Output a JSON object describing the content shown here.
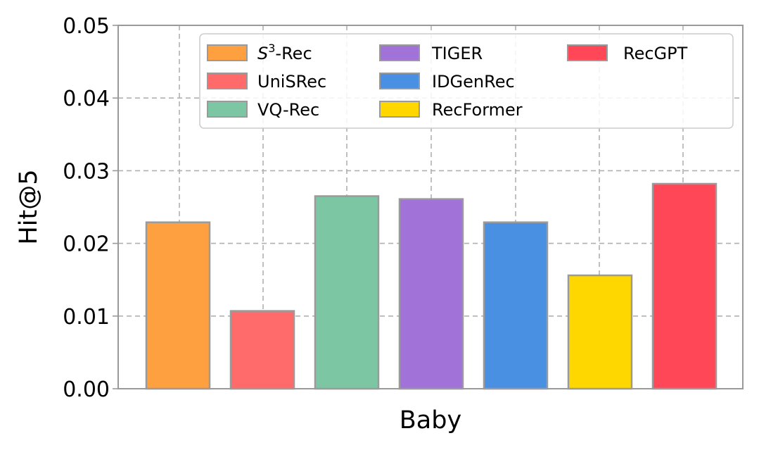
{
  "chart_data": {
    "type": "bar",
    "title": "",
    "xlabel": "Baby",
    "ylabel": "Hit@5",
    "ylim": [
      0,
      0.05
    ],
    "yticks": [
      "0.00",
      "0.01",
      "0.02",
      "0.03",
      "0.04",
      "0.05"
    ],
    "grid": true,
    "legend_position": "top-right",
    "legend_columns": 3,
    "category": "Baby",
    "series": [
      {
        "name": "S",
        "superscript": "3",
        "suffix": "-Rec",
        "label": "S3-Rec",
        "value": 0.0229,
        "color": "#FFA040"
      },
      {
        "name": "UniSRec",
        "value": 0.0107,
        "color": "#FF6B6B"
      },
      {
        "name": "VQ-Rec",
        "value": 0.0265,
        "color": "#7DC6A4"
      },
      {
        "name": "TIGER",
        "value": 0.0261,
        "color": "#A172D8"
      },
      {
        "name": "IDGenRec",
        "value": 0.0229,
        "color": "#4A90E2"
      },
      {
        "name": "RecFormer",
        "value": 0.0156,
        "color": "#FFD700"
      },
      {
        "name": "RecGPT",
        "value": 0.0282,
        "color": "#FF4757"
      }
    ]
  }
}
